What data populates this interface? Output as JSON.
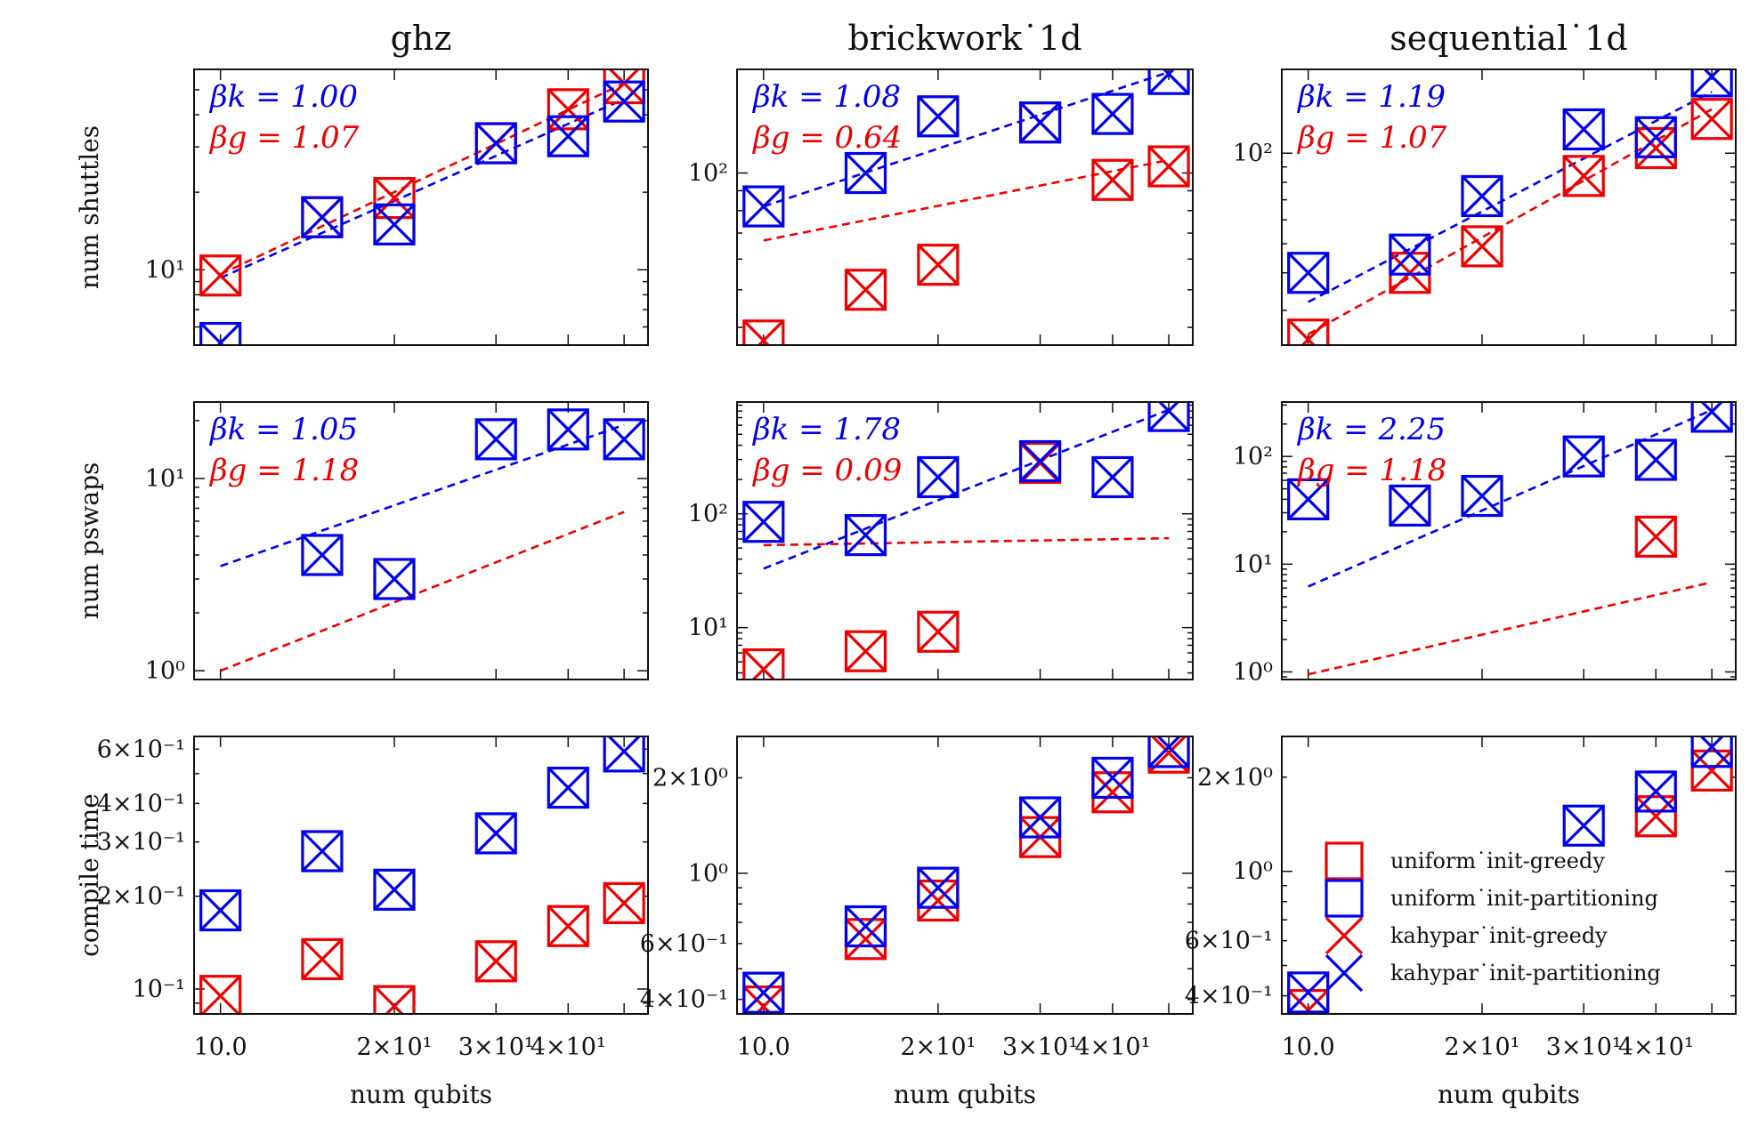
{
  "colors": {
    "kahypar": "#0000ee",
    "greedy": "#ee0000"
  },
  "x_axis": {
    "label": "num qubits",
    "scale": "log",
    "range": [
      9.0,
      55.0
    ],
    "ticks": [
      {
        "value": 10,
        "label": "10.0"
      },
      {
        "value": 20,
        "label": "2×10¹"
      },
      {
        "value": 30,
        "label": "3×10¹"
      },
      {
        "value": 40,
        "label": "4×10¹"
      }
    ]
  },
  "legend": {
    "placement": "lower-right of bottom-right panel",
    "entries": [
      {
        "label": "uniform˙init-greedy",
        "marker": "square",
        "color": "#ee0000"
      },
      {
        "label": "uniform˙init-partitioning",
        "marker": "square",
        "color": "#0000ee"
      },
      {
        "label": "kahypar˙init-greedy",
        "marker": "x",
        "color": "#ee0000"
      },
      {
        "label": "kahypar˙init-partitioning",
        "marker": "x",
        "color": "#0000ee"
      }
    ]
  },
  "row_labels": [
    "num shuttles",
    "num pswaps",
    "compile time"
  ],
  "chart_data": [
    {
      "type": "scatter",
      "title": "ghz",
      "ylabel": "num shuttles",
      "xlabel": "",
      "yscale": "log",
      "ylim": [
        5.1,
        60
      ],
      "yticks": [
        {
          "value": 10,
          "label": "10¹"
        }
      ],
      "annotations": [
        {
          "text": "βk = 1.00",
          "color": "#0000ee"
        },
        {
          "text": "βg = 1.07",
          "color": "#ee0000"
        }
      ],
      "fits": [
        {
          "color": "#0000ee",
          "from": [
            10,
            9.3
          ],
          "to": [
            50,
            46
          ]
        },
        {
          "color": "#ee0000",
          "from": [
            10,
            9.6
          ],
          "to": [
            50,
            53
          ]
        }
      ],
      "series": [
        {
          "color": "#0000ee",
          "x": [
            10,
            15,
            20,
            30,
            40,
            50
          ],
          "y": [
            5.2,
            16,
            15,
            31,
            33,
            45
          ]
        },
        {
          "color": "#ee0000",
          "x": [
            10,
            15,
            20,
            30,
            40,
            50
          ],
          "y": [
            9.5,
            16,
            19,
            31,
            42,
            53
          ]
        }
      ]
    },
    {
      "type": "scatter",
      "title": "brickwork˙1d",
      "ylabel": "",
      "xlabel": "",
      "yscale": "log",
      "ylim": [
        36,
        185
      ],
      "yticks": [
        {
          "value": 100,
          "label": "10²"
        }
      ],
      "annotations": [
        {
          "text": "βk = 1.08",
          "color": "#0000ee"
        },
        {
          "text": "βg = 0.64",
          "color": "#ee0000"
        }
      ],
      "fits": [
        {
          "color": "#0000ee",
          "from": [
            10,
            82
          ],
          "to": [
            50,
            182
          ]
        },
        {
          "color": "#ee0000",
          "from": [
            10,
            67
          ],
          "to": [
            50,
            108
          ]
        }
      ],
      "series": [
        {
          "color": "#0000ee",
          "x": [
            10,
            15,
            20,
            30,
            40,
            50
          ],
          "y": [
            82,
            100,
            140,
            135,
            142,
            180
          ]
        },
        {
          "color": "#ee0000",
          "x": [
            10,
            15,
            20,
            30,
            40,
            50
          ],
          "y": [
            37,
            50,
            58,
            135,
            96,
            104
          ]
        }
      ]
    },
    {
      "type": "scatter",
      "title": "sequential˙1d",
      "ylabel": "",
      "xlabel": "",
      "yscale": "log",
      "ylim": [
        23,
        190
      ],
      "yticks": [
        {
          "value": 100,
          "label": "10²"
        }
      ],
      "annotations": [
        {
          "text": "βk = 1.19",
          "color": "#0000ee"
        },
        {
          "text": "βg = 1.07",
          "color": "#ee0000"
        }
      ],
      "fits": [
        {
          "color": "#0000ee",
          "from": [
            10,
            32
          ],
          "to": [
            50,
            160
          ]
        },
        {
          "color": "#ee0000",
          "from": [
            10,
            25
          ],
          "to": [
            50,
            140
          ]
        }
      ],
      "series": [
        {
          "color": "#0000ee",
          "x": [
            10,
            15,
            20,
            30,
            40,
            50
          ],
          "y": [
            40,
            46,
            72,
            120,
            113,
            180
          ]
        },
        {
          "color": "#ee0000",
          "x": [
            10,
            15,
            20,
            30,
            40,
            50
          ],
          "y": [
            24,
            40,
            49,
            84,
            104,
            130
          ]
        }
      ]
    },
    {
      "type": "scatter",
      "title": "",
      "ylabel": "num pswaps",
      "xlabel": "",
      "yscale": "log",
      "ylim": [
        0.9,
        25
      ],
      "yticks": [
        {
          "value": 1,
          "label": "10⁰"
        },
        {
          "value": 10,
          "label": "10¹"
        }
      ],
      "annotations": [
        {
          "text": "βk = 1.05",
          "color": "#0000ee"
        },
        {
          "text": "βg = 1.18",
          "color": "#ee0000"
        }
      ],
      "fits": [
        {
          "color": "#0000ee",
          "from": [
            10,
            3.5
          ],
          "to": [
            50,
            19
          ]
        },
        {
          "color": "#ee0000",
          "from": [
            10,
            1.0
          ],
          "to": [
            50,
            6.7
          ]
        }
      ],
      "series": [
        {
          "color": "#0000ee",
          "x": [
            15,
            20,
            30,
            40,
            50
          ],
          "y": [
            4,
            3,
            16,
            18,
            16
          ]
        },
        {
          "color": "#ee0000",
          "x": [],
          "y": []
        }
      ]
    },
    {
      "type": "scatter",
      "title": "",
      "ylabel": "",
      "xlabel": "",
      "yscale": "log",
      "ylim": [
        3.5,
        960
      ],
      "yticks": [
        {
          "value": 10,
          "label": "10¹"
        },
        {
          "value": 100,
          "label": "10²"
        }
      ],
      "annotations": [
        {
          "text": "βk = 1.78",
          "color": "#0000ee"
        },
        {
          "text": "βg = 0.09",
          "color": "#ee0000"
        }
      ],
      "fits": [
        {
          "color": "#0000ee",
          "from": [
            10,
            33
          ],
          "to": [
            50,
            820
          ]
        },
        {
          "color": "#ee0000",
          "from": [
            10,
            53
          ],
          "to": [
            50,
            61
          ]
        }
      ],
      "series": [
        {
          "color": "#0000ee",
          "x": [
            10,
            15,
            20,
            30,
            40,
            50
          ],
          "y": [
            85,
            65,
            210,
            290,
            210,
            800
          ]
        },
        {
          "color": "#ee0000",
          "x": [
            10,
            15,
            20,
            30
          ],
          "y": [
            4.3,
            6.2,
            9.2,
            280
          ]
        }
      ]
    },
    {
      "type": "scatter",
      "title": "",
      "ylabel": "",
      "xlabel": "",
      "yscale": "log",
      "ylim": [
        0.85,
        320
      ],
      "yticks": [
        {
          "value": 1,
          "label": "10⁰"
        },
        {
          "value": 10,
          "label": "10¹"
        },
        {
          "value": 100,
          "label": "10²"
        }
      ],
      "annotations": [
        {
          "text": "βk = 2.25",
          "color": "#0000ee"
        },
        {
          "text": "βg = 1.18",
          "color": "#ee0000"
        }
      ],
      "fits": [
        {
          "color": "#0000ee",
          "from": [
            10,
            6.2
          ],
          "to": [
            50,
            270
          ]
        },
        {
          "color": "#ee0000",
          "from": [
            10,
            0.95
          ],
          "to": [
            50,
            6.8
          ]
        }
      ],
      "series": [
        {
          "color": "#0000ee",
          "x": [
            10,
            15,
            20,
            30,
            40,
            50
          ],
          "y": [
            40,
            35,
            43,
            100,
            93,
            260
          ]
        },
        {
          "color": "#ee0000",
          "x": [
            40
          ],
          "y": [
            18
          ]
        }
      ]
    },
    {
      "type": "scatter",
      "title": "",
      "ylabel": "compile time",
      "xlabel": "num qubits",
      "yscale": "log",
      "ylim": [
        0.083,
        0.66
      ],
      "yticks": [
        {
          "value": 0.1,
          "label": "10⁻¹"
        },
        {
          "value": 0.2,
          "label": "2×10⁻¹"
        },
        {
          "value": 0.3,
          "label": "3×10⁻¹"
        },
        {
          "value": 0.4,
          "label": "4×10⁻¹"
        },
        {
          "value": 0.6,
          "label": "6×10⁻¹"
        }
      ],
      "annotations": [],
      "fits": [],
      "series": [
        {
          "color": "#0000ee",
          "x": [
            10,
            15,
            20,
            30,
            40,
            50
          ],
          "y": [
            0.18,
            0.28,
            0.21,
            0.32,
            0.45,
            0.59
          ]
        },
        {
          "color": "#ee0000",
          "x": [
            10,
            15,
            20,
            30,
            40,
            50
          ],
          "y": [
            0.095,
            0.125,
            0.088,
            0.123,
            0.16,
            0.19
          ]
        }
      ]
    },
    {
      "type": "scatter",
      "title": "",
      "ylabel": "",
      "xlabel": "num qubits",
      "yscale": "log",
      "ylim": [
        0.36,
        2.7
      ],
      "yticks": [
        {
          "value": 0.4,
          "label": "4×10⁻¹"
        },
        {
          "value": 0.6,
          "label": "6×10⁻¹"
        },
        {
          "value": 1,
          "label": "10⁰"
        },
        {
          "value": 2,
          "label": "2×10⁰"
        }
      ],
      "annotations": [],
      "fits": [],
      "series": [
        {
          "color": "#0000ee",
          "x": [
            10,
            15,
            20,
            30,
            40,
            50
          ],
          "y": [
            0.42,
            0.68,
            0.9,
            1.5,
            2.0,
            2.5
          ]
        },
        {
          "color": "#ee0000",
          "x": [
            10,
            15,
            20,
            30,
            40,
            50
          ],
          "y": [
            0.38,
            0.62,
            0.82,
            1.3,
            1.8,
            2.4
          ]
        }
      ]
    },
    {
      "type": "scatter",
      "title": "",
      "ylabel": "",
      "xlabel": "num qubits",
      "yscale": "log",
      "ylim": [
        0.35,
        2.7
      ],
      "yticks": [
        {
          "value": 0.4,
          "label": "4×10⁻¹"
        },
        {
          "value": 0.6,
          "label": "6×10⁻¹"
        },
        {
          "value": 1,
          "label": "10⁰"
        },
        {
          "value": 2,
          "label": "2×10⁰"
        }
      ],
      "annotations": [],
      "fits": [],
      "series": [
        {
          "color": "#0000ee",
          "x": [
            10,
            30,
            40,
            50
          ],
          "y": [
            0.41,
            1.4,
            1.8,
            2.5
          ]
        },
        {
          "color": "#ee0000",
          "x": [
            10,
            40,
            50
          ],
          "y": [
            0.36,
            1.5,
            2.1
          ]
        }
      ]
    }
  ]
}
